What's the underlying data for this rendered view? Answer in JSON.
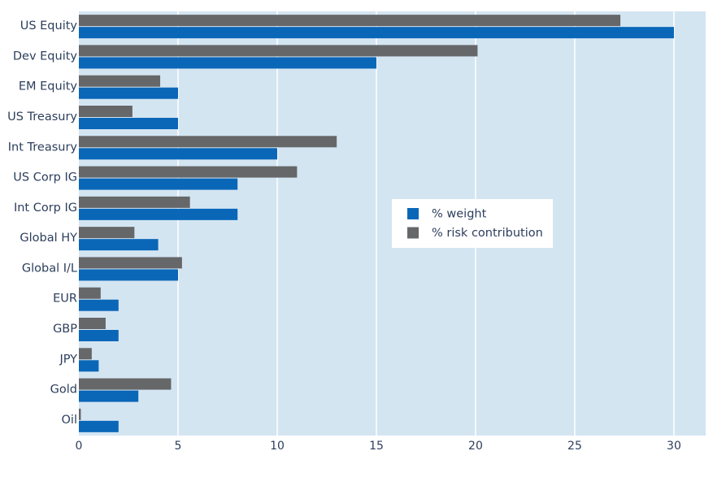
{
  "colors": {
    "plot_bg": "#d4e5f2",
    "grid": "#ffffff",
    "weight": "#0a67b8",
    "risk": "#666769",
    "text": "#2c3e5c",
    "legend_bg": "#ffffff"
  },
  "chart_data": {
    "type": "bar",
    "orientation": "horizontal",
    "categories": [
      "US Equity",
      "Dev Equity",
      "EM Equity",
      "US Treasury",
      "Int Treasury",
      "US Corp IG",
      "Int Corp IG",
      "Global HY",
      "Global I/L",
      "EUR",
      "GBP",
      "JPY",
      "Gold",
      "Oil"
    ],
    "series": [
      {
        "name": "% weight",
        "color": "#0a67b8",
        "values": [
          30,
          15,
          5,
          5,
          10,
          8,
          8,
          4,
          5,
          2,
          2,
          1,
          3,
          2
        ]
      },
      {
        "name": "% risk contribution",
        "color": "#666769",
        "values": [
          27.3,
          20.1,
          4.1,
          2.7,
          13.0,
          11.0,
          5.6,
          2.8,
          5.2,
          1.1,
          1.35,
          0.65,
          4.65,
          0.1
        ]
      }
    ],
    "xlim": [
      0,
      31.6
    ],
    "xticks": [
      0,
      5,
      10,
      15,
      20,
      25,
      30
    ],
    "xtick_labels": [
      "0",
      "5",
      "10",
      "15",
      "20",
      "25",
      "30"
    ],
    "title": "",
    "xlabel": "",
    "ylabel": "",
    "grid": "vertical",
    "legend": {
      "placement": "center-right",
      "entries": [
        "% weight",
        "% risk contribution"
      ]
    }
  }
}
